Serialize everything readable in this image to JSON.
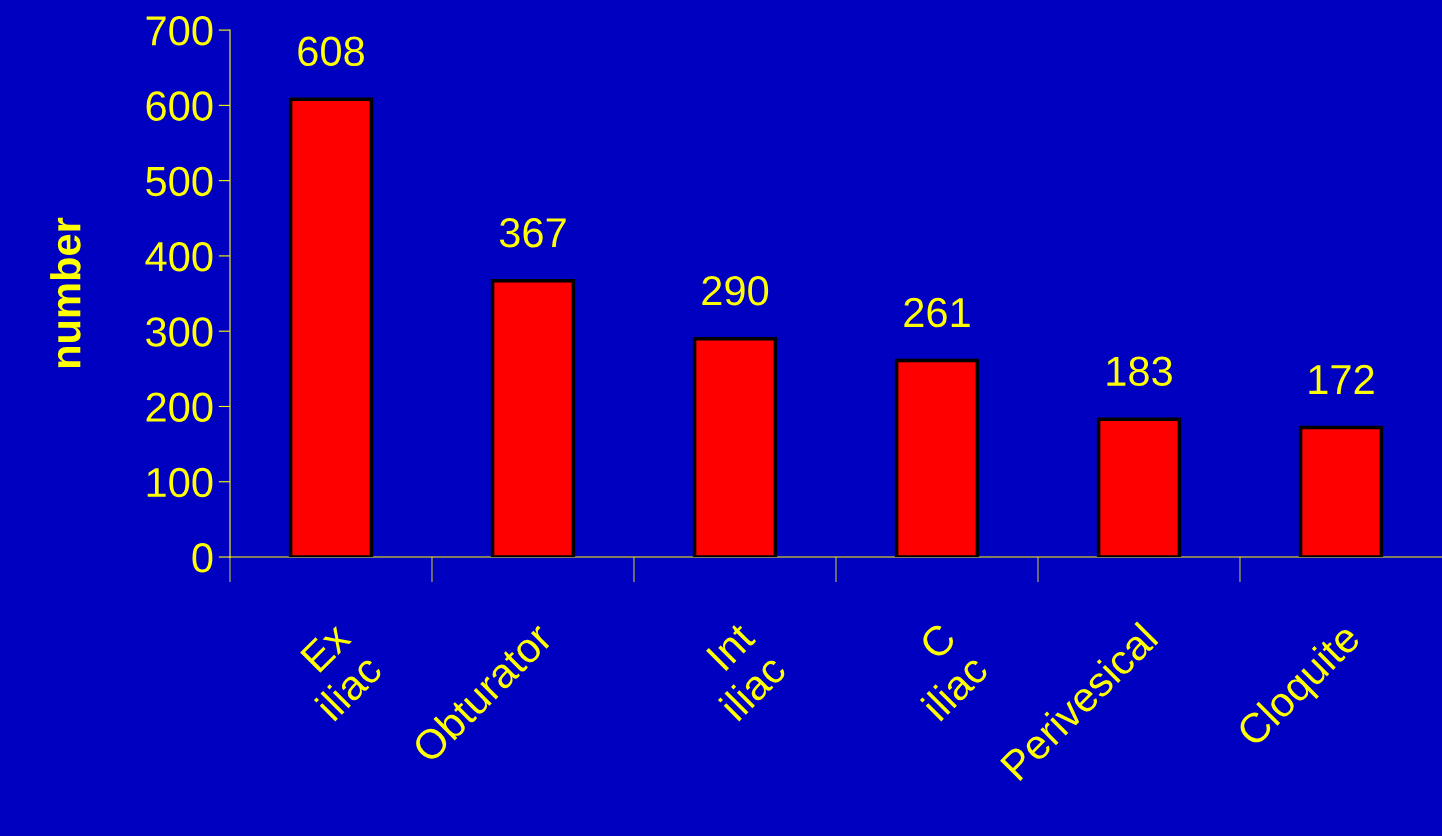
{
  "chart_data": {
    "type": "bar",
    "ylabel": "number",
    "categories": [
      "Ex\niliac",
      "Obturator",
      "Int\niliac",
      "C\niliac",
      "Perivesical",
      "Cloquite"
    ],
    "values": [
      608,
      367,
      290,
      261,
      183,
      172
    ],
    "color": "#ff0000",
    "ylim": [
      0,
      700
    ],
    "yticks": [
      0,
      100,
      200,
      300,
      400,
      500,
      600,
      700
    ],
    "data_labels": true,
    "grid": false,
    "legend": false
  }
}
